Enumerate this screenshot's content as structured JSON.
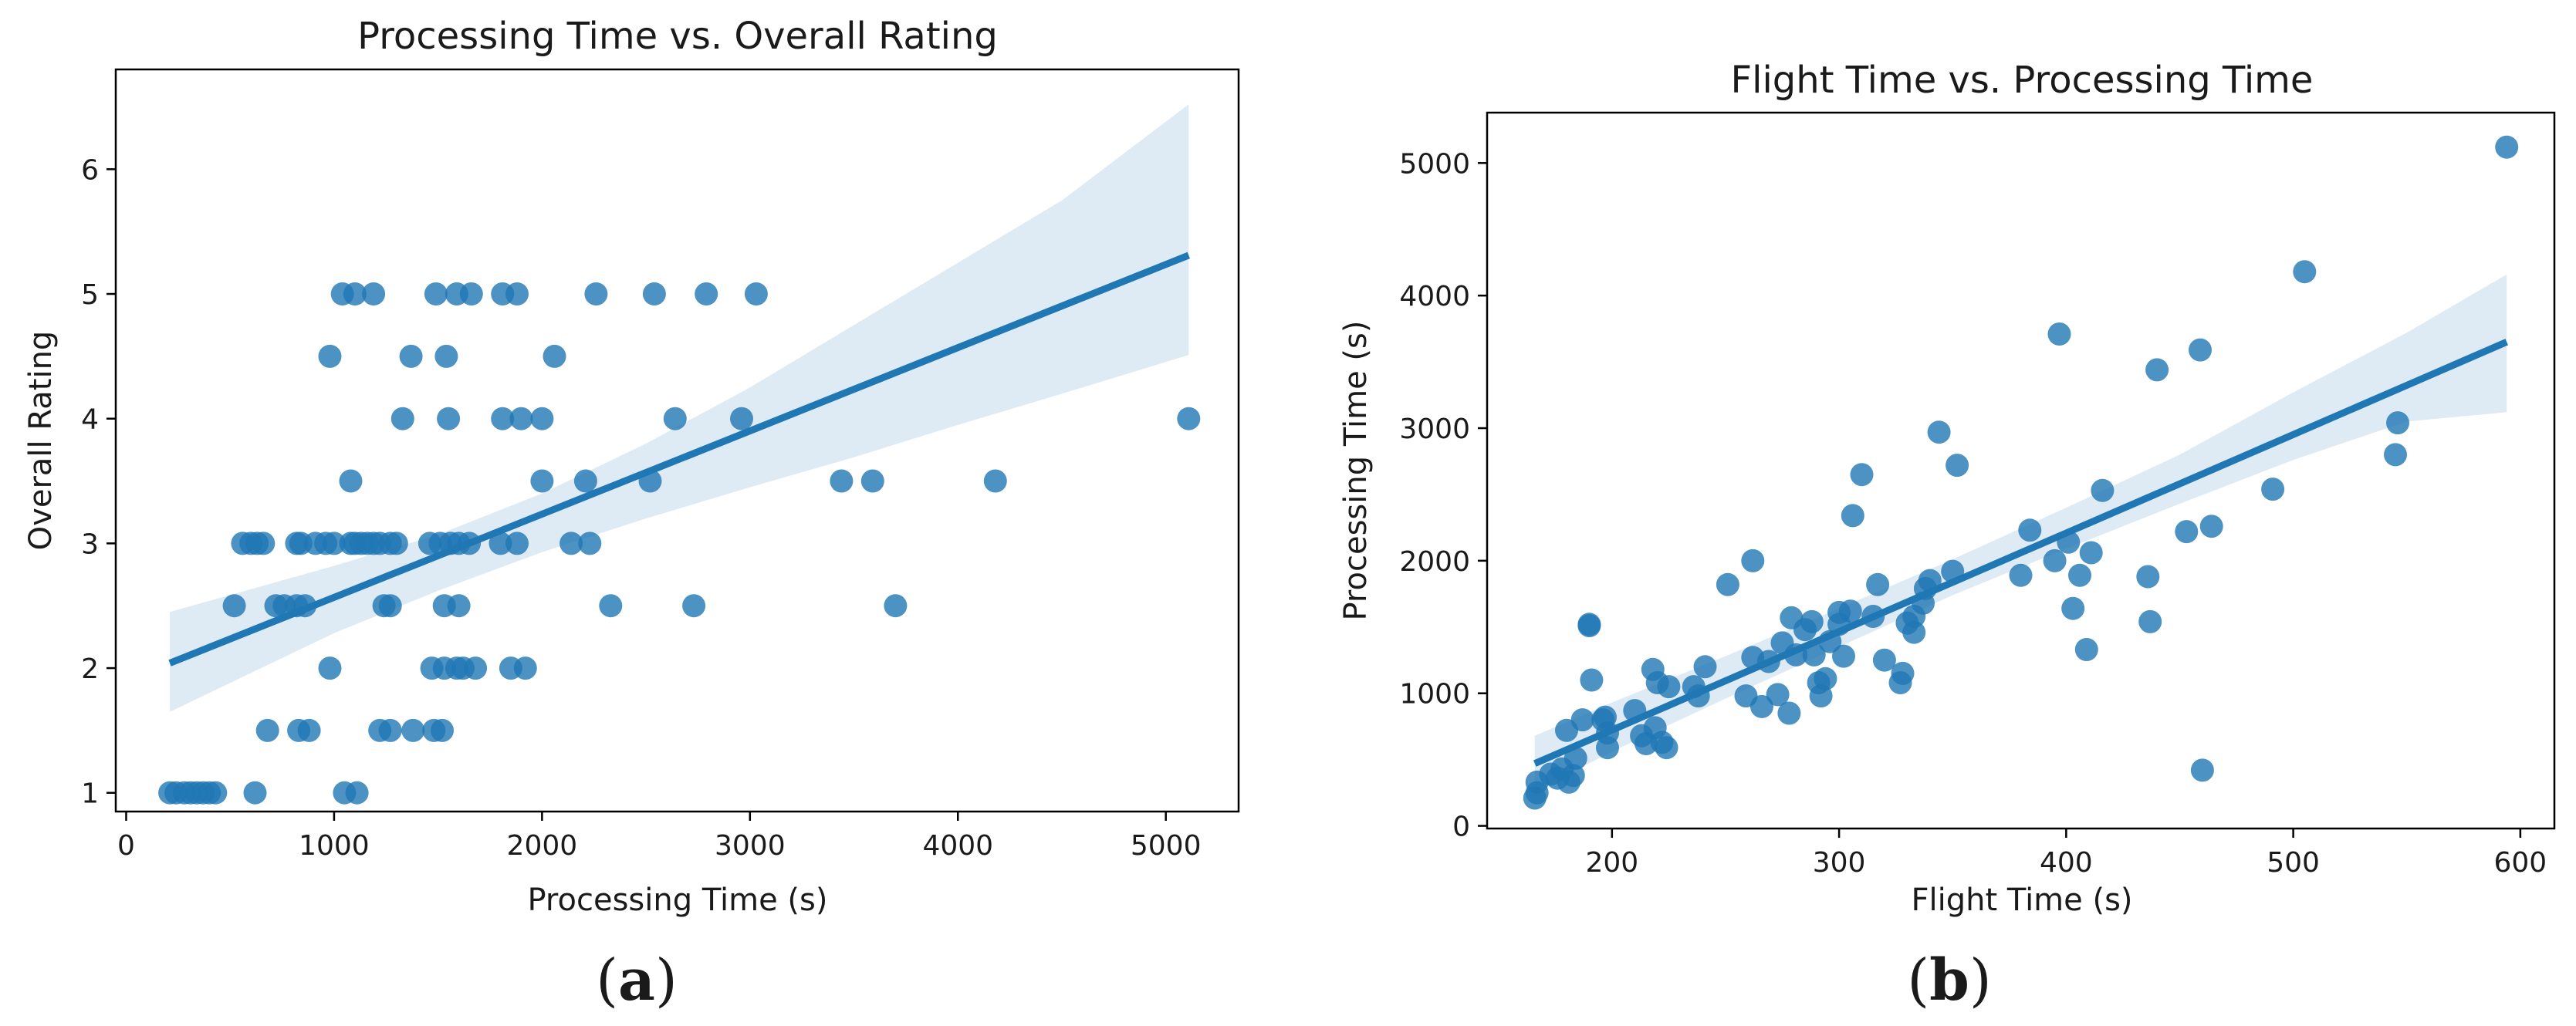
{
  "chart_data": [
    {
      "id": "a",
      "type": "scatter",
      "title": "Processing Time vs. Overall Rating",
      "xlabel": "Processing Time (s)",
      "ylabel": "Overall Rating",
      "panel_label": "a",
      "xlim": [
        -50,
        5350
      ],
      "ylim": [
        0.85,
        6.8
      ],
      "xticks": [
        0,
        1000,
        2000,
        3000,
        4000,
        5000
      ],
      "yticks": [
        1,
        2,
        3,
        4,
        5,
        6
      ],
      "grid": false,
      "regression": {
        "x0": 210,
        "x1": 5110,
        "y0": 2.04,
        "y1": 5.31
      },
      "confidence_band": {
        "x": [
          210,
          1000,
          1500,
          2000,
          2500,
          3000,
          3500,
          4000,
          4500,
          5110
        ],
        "lower": [
          1.65,
          2.28,
          2.62,
          2.93,
          3.2,
          3.45,
          3.69,
          3.95,
          4.2,
          4.51
        ],
        "upper": [
          2.45,
          2.82,
          3.07,
          3.4,
          3.8,
          4.25,
          4.75,
          5.25,
          5.75,
          6.52
        ]
      },
      "points": [
        [
          210,
          1
        ],
        [
          240,
          1
        ],
        [
          280,
          1
        ],
        [
          310,
          1
        ],
        [
          340,
          1
        ],
        [
          370,
          1
        ],
        [
          400,
          1
        ],
        [
          430,
          1
        ],
        [
          620,
          1
        ],
        [
          1050,
          1
        ],
        [
          1110,
          1
        ],
        [
          680,
          1.5
        ],
        [
          830,
          1.5
        ],
        [
          880,
          1.5
        ],
        [
          1220,
          1.5
        ],
        [
          1270,
          1.5
        ],
        [
          1380,
          1.5
        ],
        [
          1480,
          1.5
        ],
        [
          1520,
          1.5
        ],
        [
          980,
          2
        ],
        [
          1470,
          2
        ],
        [
          1530,
          2
        ],
        [
          1590,
          2
        ],
        [
          1620,
          2
        ],
        [
          1680,
          2
        ],
        [
          1850,
          2
        ],
        [
          1920,
          2
        ],
        [
          520,
          2.5
        ],
        [
          720,
          2.5
        ],
        [
          760,
          2.5
        ],
        [
          820,
          2.5
        ],
        [
          860,
          2.5
        ],
        [
          1240,
          2.5
        ],
        [
          1270,
          2.5
        ],
        [
          1530,
          2.5
        ],
        [
          1600,
          2.5
        ],
        [
          2330,
          2.5
        ],
        [
          2730,
          2.5
        ],
        [
          3700,
          2.5
        ],
        [
          560,
          3
        ],
        [
          600,
          3
        ],
        [
          630,
          3
        ],
        [
          660,
          3
        ],
        [
          820,
          3
        ],
        [
          840,
          3
        ],
        [
          910,
          3
        ],
        [
          960,
          3
        ],
        [
          1000,
          3
        ],
        [
          1080,
          3
        ],
        [
          1100,
          3
        ],
        [
          1130,
          3
        ],
        [
          1160,
          3
        ],
        [
          1190,
          3
        ],
        [
          1220,
          3
        ],
        [
          1270,
          3
        ],
        [
          1300,
          3
        ],
        [
          1460,
          3
        ],
        [
          1510,
          3
        ],
        [
          1560,
          3
        ],
        [
          1600,
          3
        ],
        [
          1650,
          3
        ],
        [
          1800,
          3
        ],
        [
          1880,
          3
        ],
        [
          2140,
          3
        ],
        [
          2230,
          3
        ],
        [
          1080,
          3.5
        ],
        [
          2000,
          3.5
        ],
        [
          2210,
          3.5
        ],
        [
          2520,
          3.5
        ],
        [
          3440,
          3.5
        ],
        [
          3590,
          3.5
        ],
        [
          4180,
          3.5
        ],
        [
          1330,
          4
        ],
        [
          1550,
          4
        ],
        [
          1810,
          4
        ],
        [
          1900,
          4
        ],
        [
          2000,
          4
        ],
        [
          2640,
          4
        ],
        [
          2960,
          4
        ],
        [
          5110,
          4
        ],
        [
          980,
          4.5
        ],
        [
          1370,
          4.5
        ],
        [
          1540,
          4.5
        ],
        [
          2060,
          4.5
        ],
        [
          1040,
          5
        ],
        [
          1100,
          5
        ],
        [
          1190,
          5
        ],
        [
          1490,
          5
        ],
        [
          1590,
          5
        ],
        [
          1660,
          5
        ],
        [
          1810,
          5
        ],
        [
          1880,
          5
        ],
        [
          2260,
          5
        ],
        [
          2540,
          5
        ],
        [
          2790,
          5
        ],
        [
          3030,
          5
        ]
      ]
    },
    {
      "id": "b",
      "type": "scatter",
      "title": "Flight Time vs. Processing Time",
      "xlabel": "Flight Time (s)",
      "ylabel": "Processing Time (s)",
      "panel_label": "b",
      "xlim": [
        145,
        615
      ],
      "ylim": [
        -20,
        5380
      ],
      "xticks": [
        200,
        300,
        400,
        500,
        600
      ],
      "yticks": [
        0,
        1000,
        2000,
        3000,
        4000,
        5000
      ],
      "grid": false,
      "regression": {
        "x0": 166,
        "x1": 594,
        "y0": 470,
        "y1": 3650
      },
      "confidence_band": {
        "x": [
          166,
          200,
          250,
          300,
          350,
          400,
          450,
          500,
          550,
          594
        ],
        "lower": [
          260,
          560,
          960,
          1350,
          1740,
          2090,
          2430,
          2760,
          3050,
          3120
        ],
        "upper": [
          680,
          930,
          1280,
          1640,
          2010,
          2400,
          2800,
          3270,
          3720,
          4160
        ]
      },
      "points": [
        [
          166,
          210
        ],
        [
          167,
          250
        ],
        [
          167,
          330
        ],
        [
          173,
          390
        ],
        [
          176,
          360
        ],
        [
          178,
          430
        ],
        [
          180,
          720
        ],
        [
          181,
          330
        ],
        [
          183,
          380
        ],
        [
          184,
          510
        ],
        [
          187,
          800
        ],
        [
          190,
          1510
        ],
        [
          190,
          1520
        ],
        [
          191,
          1100
        ],
        [
          196,
          800
        ],
        [
          197,
          820
        ],
        [
          198,
          590
        ],
        [
          198,
          700
        ],
        [
          210,
          870
        ],
        [
          213,
          680
        ],
        [
          215,
          620
        ],
        [
          218,
          1180
        ],
        [
          219,
          740
        ],
        [
          220,
          1080
        ],
        [
          222,
          630
        ],
        [
          224,
          590
        ],
        [
          225,
          1050
        ],
        [
          236,
          1050
        ],
        [
          238,
          980
        ],
        [
          241,
          1200
        ],
        [
          251,
          1820
        ],
        [
          259,
          980
        ],
        [
          262,
          2000
        ],
        [
          262,
          1270
        ],
        [
          266,
          900
        ],
        [
          269,
          1240
        ],
        [
          273,
          990
        ],
        [
          275,
          1380
        ],
        [
          278,
          850
        ],
        [
          279,
          1570
        ],
        [
          281,
          1290
        ],
        [
          285,
          1480
        ],
        [
          288,
          1540
        ],
        [
          289,
          1290
        ],
        [
          291,
          1080
        ],
        [
          292,
          980
        ],
        [
          294,
          1110
        ],
        [
          296,
          1390
        ],
        [
          300,
          1520
        ],
        [
          300,
          1610
        ],
        [
          302,
          1280
        ],
        [
          305,
          1620
        ],
        [
          306,
          2340
        ],
        [
          310,
          2650
        ],
        [
          315,
          1580
        ],
        [
          317,
          1820
        ],
        [
          320,
          1250
        ],
        [
          327,
          1080
        ],
        [
          328,
          1150
        ],
        [
          330,
          1530
        ],
        [
          333,
          1460
        ],
        [
          333,
          1580
        ],
        [
          337,
          1680
        ],
        [
          338,
          1790
        ],
        [
          340,
          1850
        ],
        [
          344,
          2970
        ],
        [
          350,
          1920
        ],
        [
          352,
          2720
        ],
        [
          380,
          1890
        ],
        [
          384,
          2230
        ],
        [
          395,
          2000
        ],
        [
          397,
          3710
        ],
        [
          401,
          2140
        ],
        [
          403,
          1640
        ],
        [
          406,
          1890
        ],
        [
          409,
          1330
        ],
        [
          411,
          2060
        ],
        [
          416,
          2530
        ],
        [
          436,
          1880
        ],
        [
          437,
          1540
        ],
        [
          440,
          3440
        ],
        [
          453,
          2220
        ],
        [
          459,
          3590
        ],
        [
          460,
          420
        ],
        [
          464,
          2260
        ],
        [
          491,
          2540
        ],
        [
          505,
          4180
        ],
        [
          545,
          2800
        ],
        [
          546,
          3040
        ],
        [
          594,
          5120
        ]
      ]
    }
  ]
}
